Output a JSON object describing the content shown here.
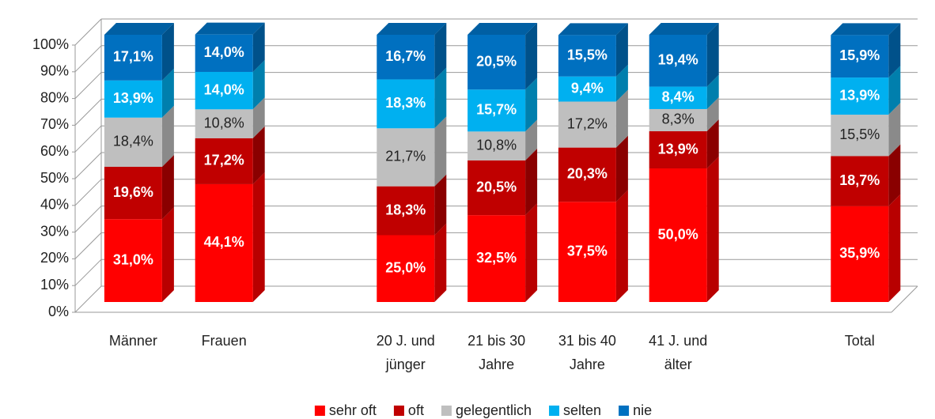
{
  "chart_data": {
    "type": "bar3d_stacked_percent",
    "categories": [
      [
        "Männer"
      ],
      [
        "Frauen"
      ],
      null,
      [
        "20 J. und",
        "jünger"
      ],
      [
        "21 bis 30",
        "Jahre"
      ],
      [
        "31 bis 40",
        "Jahre"
      ],
      [
        "41 J. und",
        "älter"
      ],
      null,
      [
        "Total"
      ]
    ],
    "series": [
      {
        "name": "sehr oft",
        "color": "#ff0000",
        "values": [
          31.0,
          44.1,
          null,
          25.0,
          32.5,
          37.5,
          50.0,
          null,
          35.9
        ],
        "value_labels": [
          "31,0%",
          "44,1%",
          null,
          "25,0%",
          "32,5%",
          "37,5%",
          "50,0%",
          null,
          "35,9%"
        ]
      },
      {
        "name": "oft",
        "color": "#c00000",
        "values": [
          19.6,
          17.2,
          null,
          18.3,
          20.5,
          20.3,
          13.9,
          null,
          18.7
        ],
        "value_labels": [
          "19,6%",
          "17,2%",
          null,
          "18,3%",
          "20,5%",
          "20,3%",
          "13,9%",
          null,
          "18,7%"
        ]
      },
      {
        "name": "gelegentlich",
        "color": "#bfbfbf",
        "values": [
          18.4,
          10.8,
          null,
          21.7,
          10.8,
          17.2,
          8.3,
          null,
          15.5
        ],
        "value_labels": [
          "18,4%",
          "10,8%",
          null,
          "21,7%",
          "10,8%",
          "17,2%",
          "8,3%",
          null,
          "15,5%"
        ]
      },
      {
        "name": "selten",
        "color": "#00b0f0",
        "values": [
          13.9,
          14.0,
          null,
          18.3,
          15.7,
          9.4,
          8.4,
          null,
          13.9
        ],
        "value_labels": [
          "13,9%",
          "14,0%",
          null,
          "18,3%",
          "15,7%",
          "9,4%",
          "8,4%",
          null,
          "13,9%"
        ]
      },
      {
        "name": "nie",
        "color": "#0070c0",
        "values": [
          17.1,
          14.0,
          null,
          16.7,
          20.5,
          15.5,
          19.4,
          null,
          15.9
        ],
        "value_labels": [
          "17,1%",
          "14,0%",
          null,
          "16,7%",
          "20,5%",
          "15,5%",
          "19,4%",
          null,
          "15,9%"
        ]
      }
    ],
    "ylim": [
      0,
      100
    ],
    "yticks": [
      {
        "value": 0,
        "label": "0%"
      },
      {
        "value": 10,
        "label": "10%"
      },
      {
        "value": 20,
        "label": "20%"
      },
      {
        "value": 30,
        "label": "30%"
      },
      {
        "value": 40,
        "label": "40%"
      },
      {
        "value": 50,
        "label": "50%"
      },
      {
        "value": 60,
        "label": "60%"
      },
      {
        "value": 70,
        "label": "70%"
      },
      {
        "value": 80,
        "label": "80%"
      },
      {
        "value": 90,
        "label": "90%"
      },
      {
        "value": 100,
        "label": "100%"
      }
    ],
    "grid": true,
    "legend": "bottom"
  }
}
